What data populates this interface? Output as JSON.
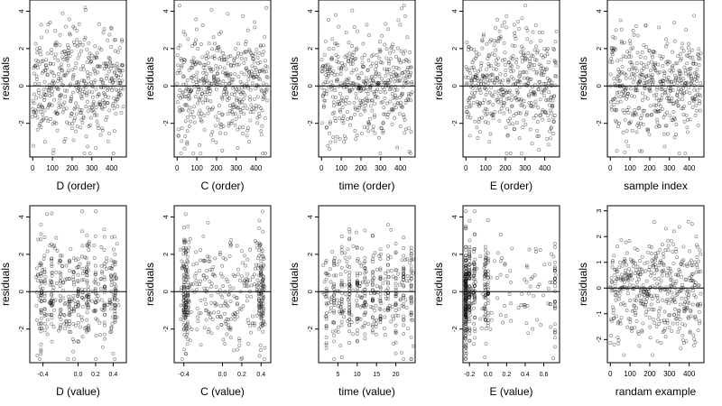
{
  "chart_data": [
    {
      "type": "scatter",
      "xlabel": "D (order)",
      "ylabel": "residuals",
      "xlim": [
        -15,
        475
      ],
      "ylim": [
        -3.8,
        4.6
      ],
      "xticks": [
        0,
        100,
        200,
        300,
        400
      ],
      "xtick_labels": [
        "0",
        "100",
        "200",
        "300",
        "400"
      ],
      "yticks": [
        -2,
        0,
        2,
        4
      ],
      "ytick_labels": [
        "-2",
        "0",
        "2",
        "4"
      ],
      "ref_line_y": 0,
      "tick_label_size": "small",
      "points_x": [],
      "points_y": [],
      "n_points": 460,
      "seed": 11,
      "x_mode": "index"
    },
    {
      "type": "scatter",
      "xlabel": "C (order)",
      "ylabel": "residuals",
      "xlim": [
        -15,
        475
      ],
      "ylim": [
        -3.8,
        4.6
      ],
      "xticks": [
        0,
        100,
        200,
        300,
        400
      ],
      "xtick_labels": [
        "0",
        "100",
        "200",
        "300",
        "400"
      ],
      "yticks": [
        -2,
        0,
        2,
        4
      ],
      "ytick_labels": [
        "-2",
        "0",
        "2",
        "4"
      ],
      "ref_line_y": 0,
      "tick_label_size": "small",
      "points_x": [],
      "points_y": [],
      "n_points": 460,
      "seed": 22,
      "x_mode": "index"
    },
    {
      "type": "scatter",
      "xlabel": "time (order)",
      "ylabel": "residuals",
      "xlim": [
        -15,
        475
      ],
      "ylim": [
        -3.8,
        4.6
      ],
      "xticks": [
        0,
        100,
        200,
        300,
        400
      ],
      "xtick_labels": [
        "0",
        "100",
        "200",
        "300",
        "400"
      ],
      "yticks": [
        -2,
        0,
        2,
        4
      ],
      "ytick_labels": [
        "-2",
        "0",
        "2",
        "4"
      ],
      "ref_line_y": 0,
      "tick_label_size": "small",
      "points_x": [],
      "points_y": [],
      "n_points": 460,
      "seed": 33,
      "x_mode": "index"
    },
    {
      "type": "scatter",
      "xlabel": "E (order)",
      "ylabel": "residuals",
      "xlim": [
        -15,
        475
      ],
      "ylim": [
        -3.8,
        4.6
      ],
      "xticks": [
        0,
        100,
        200,
        300,
        400
      ],
      "xtick_labels": [
        "0",
        "100",
        "200",
        "300",
        "400"
      ],
      "yticks": [
        -2,
        0,
        2,
        4
      ],
      "ytick_labels": [
        "-2",
        "0",
        "2",
        "4"
      ],
      "ref_line_y": 0,
      "tick_label_size": "small",
      "points_x": [],
      "points_y": [],
      "n_points": 460,
      "seed": 44,
      "x_mode": "index"
    },
    {
      "type": "scatter",
      "xlabel": "sample index",
      "ylabel": "residuals",
      "xlim": [
        -15,
        475
      ],
      "ylim": [
        -3.8,
        4.6
      ],
      "xticks": [
        0,
        100,
        200,
        300,
        400
      ],
      "xtick_labels": [
        "0",
        "100",
        "200",
        "300",
        "400"
      ],
      "yticks": [
        -2,
        0,
        2,
        4
      ],
      "ytick_labels": [
        "-2",
        "0",
        "2",
        "4"
      ],
      "ref_line_y": 0,
      "tick_label_size": "small",
      "points_x": [],
      "points_y": [],
      "n_points": 460,
      "seed": 55,
      "x_mode": "index"
    },
    {
      "type": "scatter",
      "xlabel": "D (value)",
      "ylabel": "residuals",
      "xlim": [
        -0.55,
        0.55
      ],
      "ylim": [
        -3.8,
        4.6
      ],
      "xticks": [
        -0.4,
        0.0,
        0.2,
        0.4
      ],
      "xtick_labels": [
        "-0.4",
        "0.0",
        "0.2",
        "0.4"
      ],
      "yticks": [
        -2,
        0,
        2,
        4
      ],
      "ytick_labels": [
        "-2",
        "0",
        "2",
        "4"
      ],
      "ref_line_y": 0,
      "tick_label_size": "tiny",
      "points_x": [],
      "points_y": [],
      "n_points": 460,
      "seed": 66,
      "x_mode": "d_value"
    },
    {
      "type": "scatter",
      "xlabel": "C (value)",
      "ylabel": "residuals",
      "xlim": [
        -0.5,
        0.5
      ],
      "ylim": [
        -3.8,
        4.6
      ],
      "xticks": [
        -0.4,
        0.0,
        0.2,
        0.4
      ],
      "xtick_labels": [
        "-0.4",
        "0.0",
        "0.2",
        "0.4"
      ],
      "yticks": [
        -2,
        0,
        2,
        4
      ],
      "ytick_labels": [
        "-2",
        "0",
        "2",
        "4"
      ],
      "ref_line_y": 0,
      "tick_label_size": "tiny",
      "points_x": [],
      "points_y": [],
      "n_points": 460,
      "seed": 77,
      "x_mode": "c_value"
    },
    {
      "type": "scatter",
      "xlabel": "time (value)",
      "ylabel": "residuals",
      "xlim": [
        0,
        25
      ],
      "ylim": [
        -3.8,
        4.6
      ],
      "xticks": [
        5,
        10,
        15,
        20
      ],
      "xtick_labels": [
        "5",
        "10",
        "15",
        "20"
      ],
      "yticks": [
        -2,
        0,
        2,
        4
      ],
      "ytick_labels": [
        "-2",
        "0",
        "2",
        "4"
      ],
      "ref_line_y": 0,
      "tick_label_size": "tiny",
      "points_x": [],
      "points_y": [],
      "n_points": 460,
      "seed": 88,
      "x_mode": "time_value"
    },
    {
      "type": "scatter",
      "xlabel": "E (value)",
      "ylabel": "residuals",
      "xlim": [
        -0.27,
        0.77
      ],
      "ylim": [
        -3.8,
        4.6
      ],
      "xticks": [
        -0.2,
        0.0,
        0.2,
        0.4,
        0.6
      ],
      "xtick_labels": [
        "-0.2",
        "0.0",
        "0.2",
        "0.4",
        "0.6"
      ],
      "yticks": [
        -2,
        0,
        2,
        4
      ],
      "ytick_labels": [
        "-2",
        "0",
        "2",
        "4"
      ],
      "ref_line_y": 0,
      "tick_label_size": "tiny",
      "points_x": [],
      "points_y": [],
      "n_points": 460,
      "seed": 99,
      "x_mode": "e_value"
    },
    {
      "type": "scatter",
      "xlabel": "randam example",
      "ylabel": "residuals",
      "xlim": [
        -15,
        475
      ],
      "ylim": [
        -2.9,
        3.2
      ],
      "xticks": [
        0,
        100,
        200,
        300,
        400
      ],
      "xtick_labels": [
        "0",
        "100",
        "200",
        "300",
        "400"
      ],
      "yticks": [
        -2,
        -1,
        0,
        1,
        2,
        3
      ],
      "ytick_labels": [
        "-2",
        "-1",
        "0",
        "1",
        "2",
        "3"
      ],
      "ref_line_y": 0,
      "tick_label_size": "small",
      "points_x": [],
      "points_y": [],
      "n_points": 460,
      "seed": 111,
      "x_mode": "index_normal"
    }
  ],
  "colors": {
    "point_stroke": "#000000",
    "point_opacity": "0.45",
    "axis": "#000000",
    "ref_line": "#000000",
    "background": "#ffffff"
  }
}
